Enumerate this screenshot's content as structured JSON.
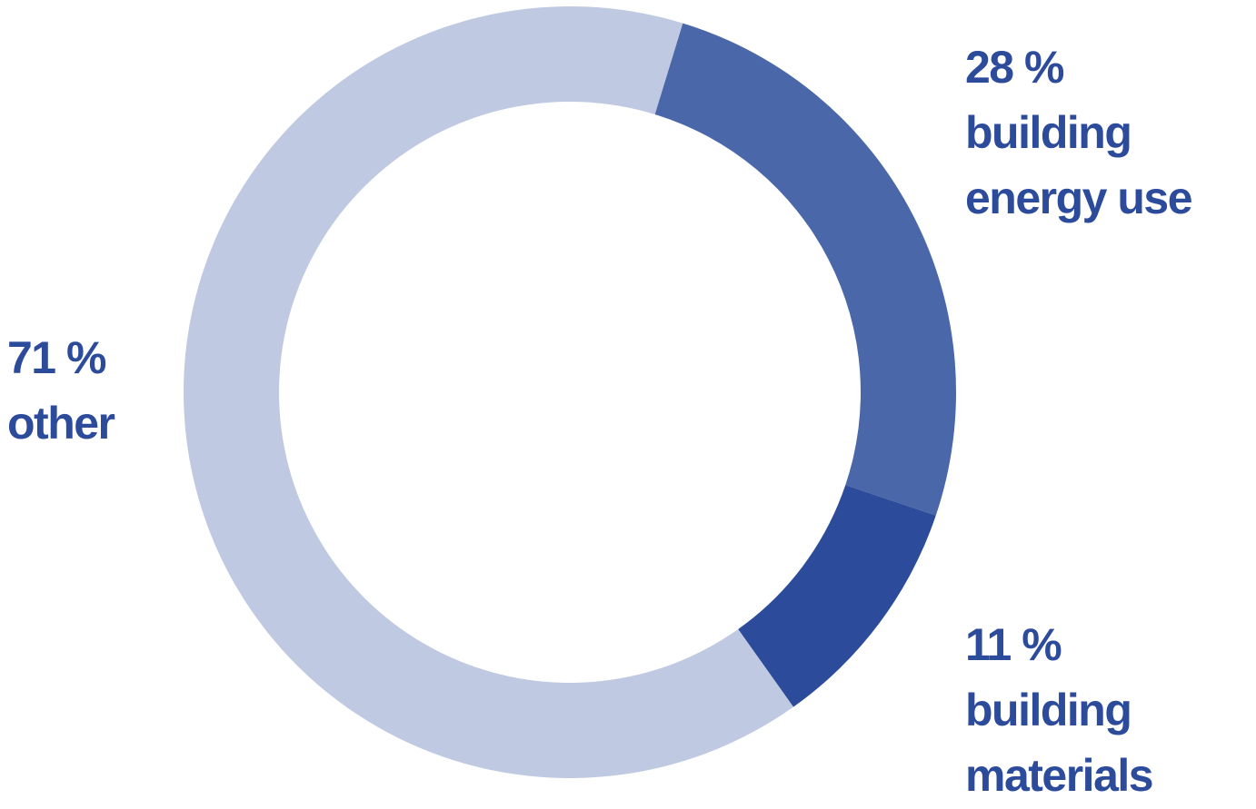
{
  "chart_data": {
    "type": "pie",
    "variant": "donut",
    "title": "",
    "slices": [
      {
        "label": "building energy use",
        "value": 28,
        "value_label": "28 %",
        "color": "#4a67a9"
      },
      {
        "label": "building materials",
        "value": 11,
        "value_label": "11 %",
        "color": "#2c4b9b"
      },
      {
        "label": "other",
        "value": 71,
        "value_label": "71 %",
        "color": "#bfc9e2"
      }
    ],
    "label_color": "#2c4b9b",
    "legend": "none"
  },
  "labels": {
    "energy": {
      "percent": "28 %",
      "line1": "building",
      "line2": "energy use"
    },
    "other": {
      "percent": "71 %",
      "line1": "other"
    },
    "materials": {
      "percent": "11 %",
      "line1": "building",
      "line2": "materials"
    }
  }
}
